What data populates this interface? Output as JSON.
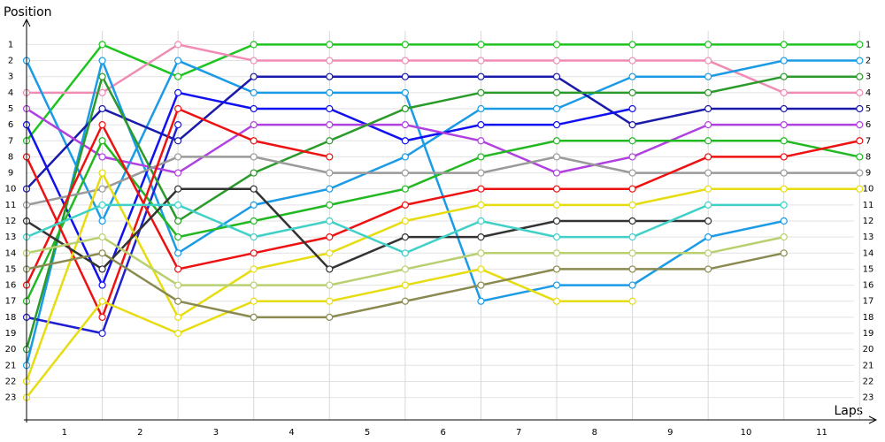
{
  "chart_data": {
    "type": "line",
    "y_label": "Position",
    "x_label": "Laps",
    "x": [
      0,
      1,
      2,
      3,
      4,
      5,
      6,
      7,
      8,
      9,
      10,
      11
    ],
    "xlim": [
      0,
      11.16
    ],
    "ylim": [
      24.4,
      -0.4
    ],
    "xticks": [
      {
        "value": 0.5,
        "label": "1"
      },
      {
        "value": 1.5,
        "label": "2"
      },
      {
        "value": 2.5,
        "label": "3"
      },
      {
        "value": 3.5,
        "label": "4"
      },
      {
        "value": 4.5,
        "label": "5"
      },
      {
        "value": 5.5,
        "label": "6"
      },
      {
        "value": 6.5,
        "label": "7"
      },
      {
        "value": 7.5,
        "label": "8"
      },
      {
        "value": 8.5,
        "label": "9"
      },
      {
        "value": 9.5,
        "label": "10"
      },
      {
        "value": 10.5,
        "label": "11"
      }
    ],
    "yticks": [
      1,
      2,
      3,
      4,
      5,
      6,
      7,
      8,
      9,
      10,
      11,
      12,
      13,
      14,
      15,
      16,
      17,
      18,
      19,
      20,
      21,
      22,
      23
    ],
    "grid": true,
    "series": [
      {
        "color": "#1fc41f",
        "values": [
          7,
          1,
          3,
          1,
          1,
          1,
          1,
          1,
          1,
          1,
          1,
          1
        ]
      },
      {
        "color": "#f08cb4",
        "values": [
          4,
          4,
          1,
          2,
          2,
          2,
          2,
          2,
          2,
          2,
          4,
          4
        ]
      },
      {
        "color": "#1b9be6",
        "values": [
          2,
          12,
          2,
          4,
          4,
          4,
          17,
          16,
          16,
          13,
          12,
          null
        ]
      },
      {
        "color": "#1b9be6",
        "values": [
          21,
          2,
          14,
          11,
          10,
          8,
          5,
          5,
          3,
          3,
          2,
          2
        ]
      },
      {
        "color": "#1a1aaa",
        "values": [
          10,
          5,
          7,
          3,
          3,
          3,
          3,
          3,
          6,
          5,
          5,
          5
        ]
      },
      {
        "color": "#1010f0",
        "values": [
          6,
          16,
          4,
          5,
          5,
          7,
          6,
          6,
          5,
          null,
          null,
          null
        ]
      },
      {
        "color": "#2020d0",
        "values": [
          18,
          19,
          6,
          null,
          null,
          null,
          null,
          null,
          null,
          null,
          null,
          null
        ]
      },
      {
        "color": "#b040e0",
        "values": [
          5,
          8,
          9,
          6,
          6,
          6,
          7,
          9,
          8,
          6,
          6,
          6
        ]
      },
      {
        "color": "#2a9a2a",
        "values": [
          20,
          3,
          12,
          9,
          7,
          5,
          4,
          4,
          4,
          4,
          3,
          3
        ]
      },
      {
        "color": "#22b822",
        "values": [
          17,
          7,
          13,
          12,
          11,
          10,
          8,
          7,
          7,
          7,
          7,
          8
        ]
      },
      {
        "color": "#9a9a9a",
        "values": [
          11,
          10,
          8,
          8,
          9,
          9,
          9,
          8,
          9,
          9,
          9,
          9
        ]
      },
      {
        "color": "#ee1111",
        "values": [
          8,
          18,
          5,
          7,
          8,
          null,
          null,
          null,
          null,
          null,
          null,
          null
        ]
      },
      {
        "color": "#ee1111",
        "values": [
          16,
          6,
          15,
          14,
          13,
          11,
          10,
          10,
          10,
          8,
          8,
          7
        ]
      },
      {
        "color": "#e6dc10",
        "values": [
          22,
          9,
          18,
          15,
          14,
          12,
          11,
          11,
          11,
          10,
          10,
          10
        ]
      },
      {
        "color": "#e6dc10",
        "values": [
          23,
          17,
          19,
          17,
          17,
          16,
          15,
          17,
          17,
          null,
          null,
          null
        ]
      },
      {
        "color": "#333333",
        "values": [
          12,
          15,
          10,
          10,
          15,
          13,
          13,
          12,
          12,
          12,
          null,
          null
        ]
      },
      {
        "color": "#40d0c8",
        "values": [
          13,
          11,
          11,
          13,
          12,
          14,
          12,
          13,
          13,
          11,
          11,
          null
        ]
      },
      {
        "color": "#b8d070",
        "values": [
          14,
          13,
          16,
          16,
          16,
          15,
          14,
          14,
          14,
          14,
          13,
          null
        ]
      },
      {
        "color": "#8a8a50",
        "values": [
          15,
          14,
          17,
          18,
          18,
          17,
          16,
          15,
          15,
          15,
          14,
          null
        ]
      }
    ]
  }
}
